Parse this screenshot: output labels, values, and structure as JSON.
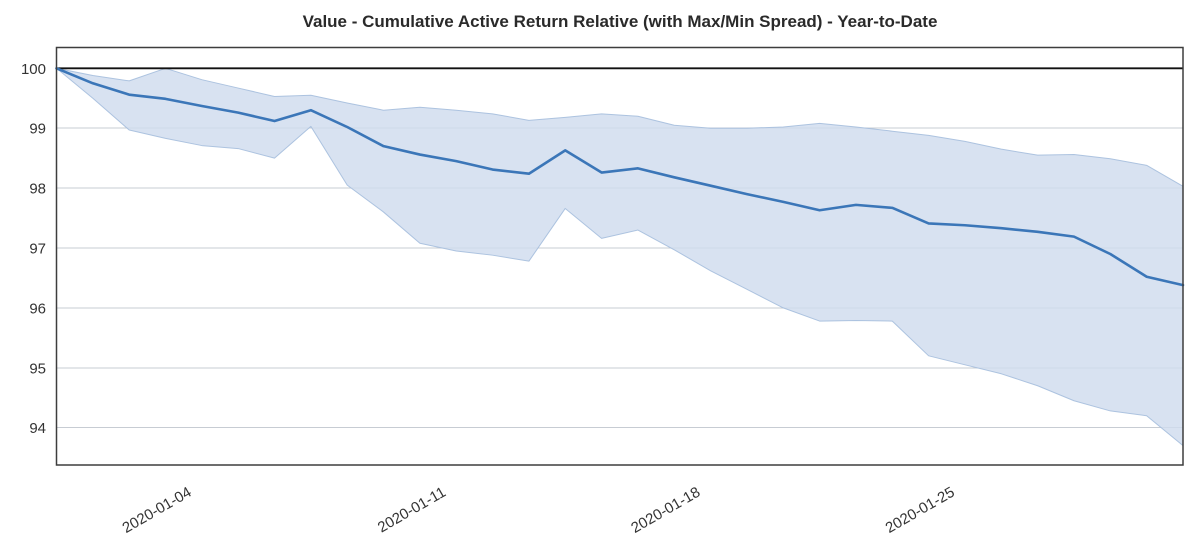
{
  "title": "Value - Cumulative Active Return Relative (with Max/Min Spread) - Year-to-Date",
  "chart_data": {
    "type": "line",
    "title": "Value - Cumulative Active Return Relative (with Max/Min Spread) - Year-to-Date",
    "x": [
      "2020-01-01",
      "2020-01-02",
      "2020-01-03",
      "2020-01-04",
      "2020-01-05",
      "2020-01-06",
      "2020-01-07",
      "2020-01-08",
      "2020-01-09",
      "2020-01-10",
      "2020-01-11",
      "2020-01-12",
      "2020-01-13",
      "2020-01-14",
      "2020-01-15",
      "2020-01-16",
      "2020-01-17",
      "2020-01-18",
      "2020-01-19",
      "2020-01-20",
      "2020-01-21",
      "2020-01-22",
      "2020-01-23",
      "2020-01-24",
      "2020-01-25",
      "2020-01-26",
      "2020-01-27",
      "2020-01-28",
      "2020-01-29",
      "2020-01-30",
      "2020-01-31",
      "2020-02-01"
    ],
    "series": [
      {
        "name": "Cumulative Active Return Relative",
        "role": "mid-line",
        "values": [
          100.0,
          99.75,
          99.56,
          99.49,
          99.37,
          99.26,
          99.12,
          99.3,
          99.02,
          98.7,
          98.56,
          98.45,
          98.31,
          98.24,
          98.63,
          98.26,
          98.33,
          98.18,
          98.04,
          97.9,
          97.77,
          97.63,
          97.72,
          97.67,
          97.41,
          97.38,
          97.33,
          97.27,
          97.19,
          96.9,
          96.52,
          96.38
        ]
      },
      {
        "name": "Max",
        "role": "band-upper",
        "values": [
          100.0,
          99.88,
          99.79,
          100.0,
          99.81,
          99.67,
          99.53,
          99.55,
          99.42,
          99.3,
          99.35,
          99.3,
          99.24,
          99.13,
          99.18,
          99.24,
          99.2,
          99.05,
          99.0,
          99.0,
          99.02,
          99.08,
          99.02,
          98.95,
          98.88,
          98.78,
          98.65,
          98.55,
          98.56,
          98.49,
          98.38,
          98.03
        ]
      },
      {
        "name": "Min",
        "role": "band-lower",
        "values": [
          100.0,
          99.5,
          98.97,
          98.83,
          98.71,
          98.66,
          98.5,
          99.03,
          98.05,
          97.6,
          97.08,
          96.95,
          96.88,
          96.78,
          97.66,
          97.16,
          97.3,
          96.97,
          96.62,
          96.31,
          96.0,
          95.78,
          95.79,
          95.78,
          95.2,
          95.05,
          94.9,
          94.7,
          94.45,
          94.28,
          94.2,
          93.7
        ]
      }
    ],
    "xlabel": "",
    "ylabel": "",
    "ylim": [
      93.38,
      100.35
    ],
    "yticks": [
      94,
      95,
      96,
      97,
      98,
      99,
      100
    ],
    "xtick_labels": [
      "2020-01-04",
      "2020-01-11",
      "2020-01-18",
      "2020-01-25"
    ],
    "xtick_rotation_deg": 30,
    "grid": true,
    "legend": "none",
    "baseline_value": 100,
    "colors": {
      "line": "#3b76b8",
      "band_fill": "#cfdcee",
      "band_edge": "#a5bedd",
      "gridline": "#c7ccd3",
      "baseline": "#111111",
      "frame": "#3d3d3d",
      "tick_text": "#333333",
      "title_text": "#2a2a2a",
      "background": "#ffffff"
    }
  }
}
